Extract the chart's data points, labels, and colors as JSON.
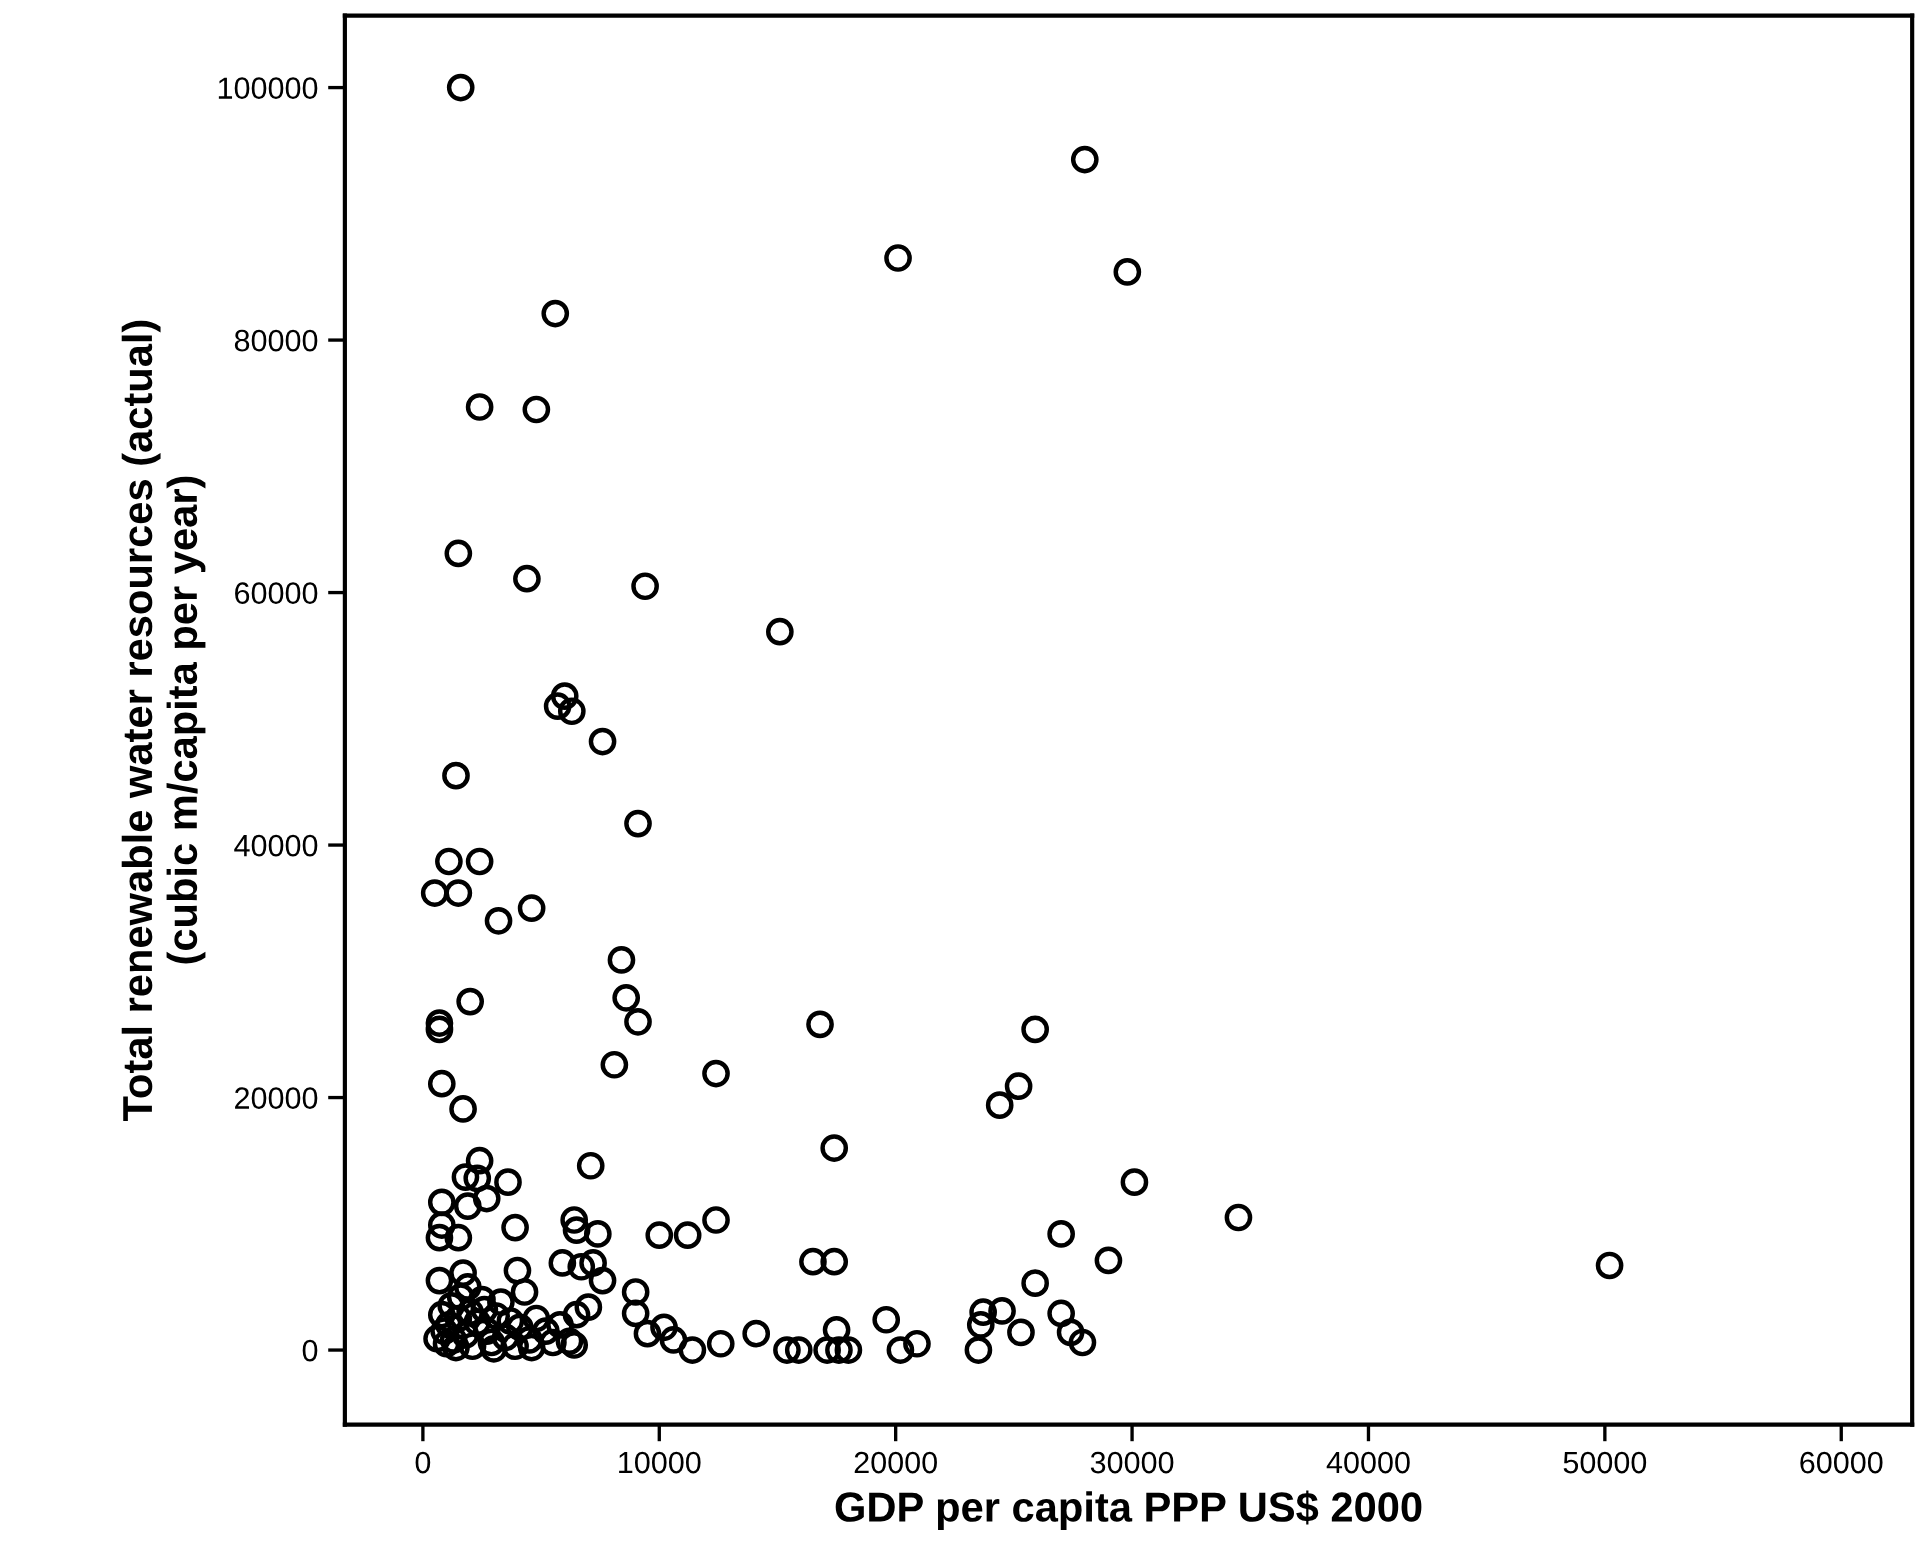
{
  "chart_data": {
    "type": "scatter",
    "xlabel": "GDP per capita PPP US$ 2000",
    "ylabel": "Total renewable water resources (actual)\n(cubic m/capita per year)",
    "xlim": [
      -3300,
      63000
    ],
    "ylim": [
      -5900,
      105700
    ],
    "xticks": [
      0,
      10000,
      20000,
      30000,
      40000,
      50000,
      60000
    ],
    "yticks": [
      0,
      20000,
      40000,
      60000,
      80000,
      100000
    ],
    "grid": false,
    "marker": "circle",
    "legend": false,
    "series": [
      {
        "color": "#000000",
        "x": [
          1600,
          28000,
          20100,
          29800,
          5600,
          2400,
          4800,
          1500,
          4400,
          9400,
          15100,
          6000,
          5700,
          6300,
          7600,
          1400,
          9100,
          1100,
          2400,
          500,
          1500,
          4600,
          3200,
          8400,
          8600,
          2000,
          9100,
          700,
          700,
          16800,
          8100,
          12400,
          800,
          1700,
          17400,
          7100,
          2400,
          1800,
          2300,
          3600,
          2700,
          800,
          1900,
          800,
          3900,
          12400,
          6400,
          6500,
          7400,
          10000,
          11200,
          700,
          1500,
          16500,
          17400,
          5900,
          6700,
          7200,
          700,
          1700,
          4000,
          7600,
          9000,
          7000,
          9000,
          9500,
          10200,
          10600,
          11400,
          12600,
          14100,
          15400,
          15900,
          17500,
          17600,
          18000,
          6400,
          25900,
          25200,
          24400,
          30100,
          34500,
          50200,
          27000,
          29000,
          25900,
          19600,
          23700,
          24500,
          23600,
          25300,
          27000,
          27400,
          27900,
          20900,
          20200,
          23500,
          17100,
          800,
          900,
          1000,
          1100,
          1200,
          1300,
          1500,
          1600,
          1800,
          2000,
          2100,
          2300,
          2500,
          2700,
          2900,
          3100,
          3300,
          3500,
          3700,
          3900,
          4100,
          4300,
          4500,
          4800,
          5200,
          5500,
          5800,
          600,
          1900,
          1400,
          2600,
          3000,
          4600,
          6200,
          6500
        ],
        "values": [
          100000,
          94300,
          86500,
          85400,
          82100,
          74700,
          74500,
          63100,
          61100,
          60500,
          56900,
          51800,
          51000,
          50600,
          48200,
          45500,
          41700,
          38700,
          38700,
          36200,
          36200,
          35000,
          34000,
          30900,
          27900,
          27600,
          26000,
          25900,
          25400,
          25800,
          22600,
          21900,
          21100,
          19100,
          16000,
          14600,
          15000,
          13700,
          13600,
          13300,
          12000,
          11700,
          11400,
          9900,
          9700,
          10300,
          10300,
          9500,
          9200,
          9100,
          9100,
          8900,
          8900,
          7000,
          7000,
          6900,
          6600,
          6900,
          5500,
          6100,
          6300,
          5500,
          4600,
          3400,
          2900,
          1300,
          1800,
          800,
          0,
          500,
          1300,
          0,
          0,
          1600,
          0,
          0,
          400,
          25400,
          20900,
          19400,
          13300,
          10500,
          6700,
          9200,
          7100,
          5300,
          2400,
          3000,
          3100,
          2000,
          1400,
          2900,
          1400,
          600,
          500,
          0,
          0,
          0,
          2800,
          1500,
          500,
          2000,
          3500,
          800,
          2500,
          4200,
          1200,
          3000,
          300,
          2200,
          4000,
          1500,
          600,
          2700,
          3800,
          1000,
          2300,
          300,
          1800,
          4600,
          800,
          2500,
          1500,
          600,
          2000,
          900,
          5000,
          200,
          3200,
          100,
          200,
          700,
          2800
        ]
      }
    ]
  }
}
